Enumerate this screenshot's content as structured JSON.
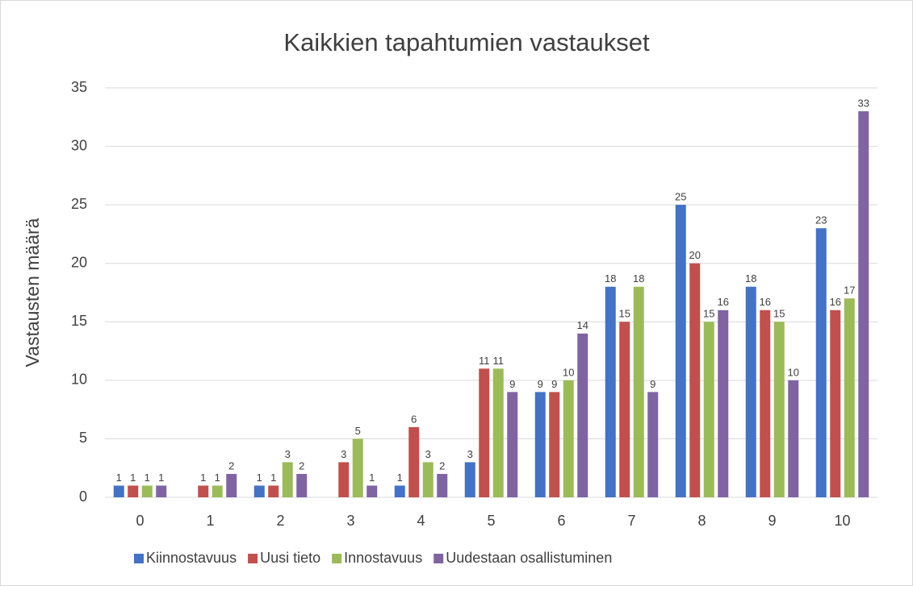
{
  "chart_data": {
    "type": "bar",
    "title": "Kaikkien tapahtumien vastaukset",
    "y_label": "Vastausten määrä",
    "categories": [
      "0",
      "1",
      "2",
      "3",
      "4",
      "5",
      "6",
      "7",
      "8",
      "9",
      "10"
    ],
    "series": [
      {
        "name": "Kiinnostavuus",
        "color": "#4472c4",
        "values": [
          1,
          null,
          1,
          null,
          1,
          3,
          9,
          18,
          25,
          18,
          23
        ]
      },
      {
        "name": "Uusi tieto",
        "color": "#c0504d",
        "values": [
          1,
          1,
          1,
          3,
          6,
          11,
          9,
          15,
          20,
          16,
          16
        ]
      },
      {
        "name": "Innostavuus",
        "color": "#9bbb59",
        "values": [
          1,
          1,
          3,
          5,
          3,
          11,
          10,
          18,
          15,
          15,
          17
        ]
      },
      {
        "name": "Uudestaan osallistuminen",
        "color": "#8064a2",
        "values": [
          1,
          2,
          2,
          1,
          2,
          9,
          14,
          9,
          16,
          10,
          33
        ]
      }
    ],
    "ylim": [
      0,
      35
    ],
    "yticks": [
      0,
      5,
      10,
      15,
      20,
      25,
      30,
      35
    ],
    "grid": true,
    "legend": "bottom"
  }
}
